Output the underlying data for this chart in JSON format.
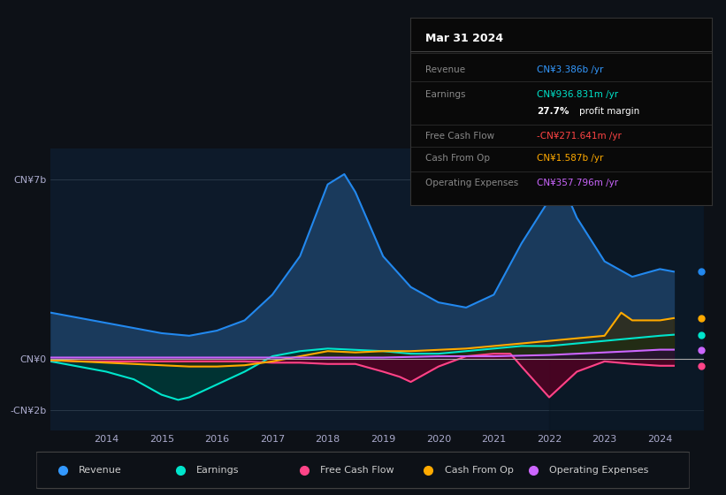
{
  "bg_color": "#0d1117",
  "plot_bg_color": "#0d1a2a",
  "title": "Mar 31 2024",
  "info_box_rows": [
    {
      "label": "Revenue",
      "value": "CN¥3.386b /yr",
      "value_color": "#3399ff"
    },
    {
      "label": "Earnings",
      "value": "CN¥936.831m /yr",
      "value_color": "#00e5cc"
    },
    {
      "label": "",
      "value": "27.7% profit margin",
      "value_color": "#ffffff",
      "bold_part": "27.7%"
    },
    {
      "label": "Free Cash Flow",
      "value": "-CN¥271.641m /yr",
      "value_color": "#ff4444"
    },
    {
      "label": "Cash From Op",
      "value": "CN¥1.587b /yr",
      "value_color": "#ffaa00"
    },
    {
      "label": "Operating Expenses",
      "value": "CN¥357.796m /yr",
      "value_color": "#cc66ff"
    }
  ],
  "yticks": [
    "CN¥7b",
    "CN¥0",
    "-CN¥2b"
  ],
  "ytick_vals": [
    7000000000,
    0,
    -2000000000
  ],
  "ylim": [
    -2800000000,
    8200000000
  ],
  "xlim": [
    2013.0,
    2024.8
  ],
  "xticks": [
    2014,
    2015,
    2016,
    2017,
    2018,
    2019,
    2020,
    2021,
    2022,
    2023,
    2024
  ],
  "legend": [
    {
      "label": "Revenue",
      "color": "#3399ff"
    },
    {
      "label": "Earnings",
      "color": "#00e5cc"
    },
    {
      "label": "Free Cash Flow",
      "color": "#ff4488"
    },
    {
      "label": "Cash From Op",
      "color": "#ffaa00"
    },
    {
      "label": "Operating Expenses",
      "color": "#cc66ff"
    }
  ],
  "revenue": {
    "color": "#2288ee",
    "fill_color": "#1a3a5c",
    "x": [
      2013.0,
      2013.5,
      2014.0,
      2014.5,
      2015.0,
      2015.5,
      2016.0,
      2016.5,
      2017.0,
      2017.5,
      2018.0,
      2018.3,
      2018.5,
      2019.0,
      2019.5,
      2020.0,
      2020.5,
      2021.0,
      2021.5,
      2022.0,
      2022.3,
      2022.5,
      2023.0,
      2023.5,
      2024.0,
      2024.25
    ],
    "y": [
      1800000000,
      1600000000,
      1400000000,
      1200000000,
      1000000000,
      900000000,
      1100000000,
      1500000000,
      2500000000,
      4000000000,
      6800000000,
      7200000000,
      6500000000,
      4000000000,
      2800000000,
      2200000000,
      2000000000,
      2500000000,
      4500000000,
      6200000000,
      6500000000,
      5500000000,
      3800000000,
      3200000000,
      3500000000,
      3400000000
    ]
  },
  "earnings": {
    "color": "#00e5cc",
    "fill_color": "#003333",
    "x": [
      2013.0,
      2013.5,
      2014.0,
      2014.5,
      2015.0,
      2015.3,
      2015.5,
      2016.0,
      2016.5,
      2017.0,
      2017.5,
      2018.0,
      2018.5,
      2019.0,
      2019.5,
      2020.0,
      2020.5,
      2021.0,
      2021.5,
      2022.0,
      2022.5,
      2023.0,
      2023.5,
      2024.0,
      2024.25
    ],
    "y": [
      -100000000,
      -300000000,
      -500000000,
      -800000000,
      -1400000000,
      -1600000000,
      -1500000000,
      -1000000000,
      -500000000,
      100000000,
      300000000,
      400000000,
      350000000,
      300000000,
      200000000,
      200000000,
      300000000,
      400000000,
      500000000,
      500000000,
      600000000,
      700000000,
      800000000,
      900000000,
      940000000
    ]
  },
  "free_cash_flow": {
    "color": "#ff4488",
    "fill_color": "#550022",
    "x": [
      2013.0,
      2013.5,
      2014.0,
      2014.5,
      2015.0,
      2015.5,
      2016.0,
      2016.5,
      2017.0,
      2017.5,
      2018.0,
      2018.5,
      2019.0,
      2019.3,
      2019.5,
      2020.0,
      2020.5,
      2021.0,
      2021.3,
      2021.5,
      2022.0,
      2022.5,
      2023.0,
      2023.5,
      2024.0,
      2024.25
    ],
    "y": [
      -50000000,
      -100000000,
      -100000000,
      -100000000,
      -100000000,
      -100000000,
      -100000000,
      -100000000,
      -150000000,
      -150000000,
      -200000000,
      -200000000,
      -500000000,
      -700000000,
      -900000000,
      -300000000,
      100000000,
      200000000,
      200000000,
      -300000000,
      -1500000000,
      -500000000,
      -100000000,
      -200000000,
      -270000000,
      -270000000
    ]
  },
  "cash_from_op": {
    "color": "#ffaa00",
    "fill_color": "#3a2800",
    "x": [
      2013.0,
      2013.5,
      2014.0,
      2014.5,
      2015.0,
      2015.5,
      2016.0,
      2016.5,
      2017.0,
      2017.5,
      2018.0,
      2018.5,
      2019.0,
      2019.5,
      2020.0,
      2020.5,
      2021.0,
      2021.5,
      2022.0,
      2022.5,
      2023.0,
      2023.3,
      2023.5,
      2024.0,
      2024.25
    ],
    "y": [
      -50000000,
      -100000000,
      -150000000,
      -200000000,
      -250000000,
      -300000000,
      -300000000,
      -250000000,
      -100000000,
      100000000,
      300000000,
      250000000,
      300000000,
      300000000,
      350000000,
      400000000,
      500000000,
      600000000,
      700000000,
      800000000,
      900000000,
      1800000000,
      1500000000,
      1500000000,
      1587000000
    ]
  },
  "op_expenses": {
    "color": "#cc66ff",
    "fill_color": "#2a0044",
    "x": [
      2013.0,
      2014.0,
      2015.0,
      2016.0,
      2017.0,
      2018.0,
      2019.0,
      2020.0,
      2021.0,
      2022.0,
      2022.5,
      2023.0,
      2023.5,
      2024.0,
      2024.25
    ],
    "y": [
      50000000,
      50000000,
      50000000,
      50000000,
      50000000,
      50000000,
      50000000,
      100000000,
      100000000,
      150000000,
      200000000,
      250000000,
      300000000,
      357000000,
      357000000
    ]
  }
}
